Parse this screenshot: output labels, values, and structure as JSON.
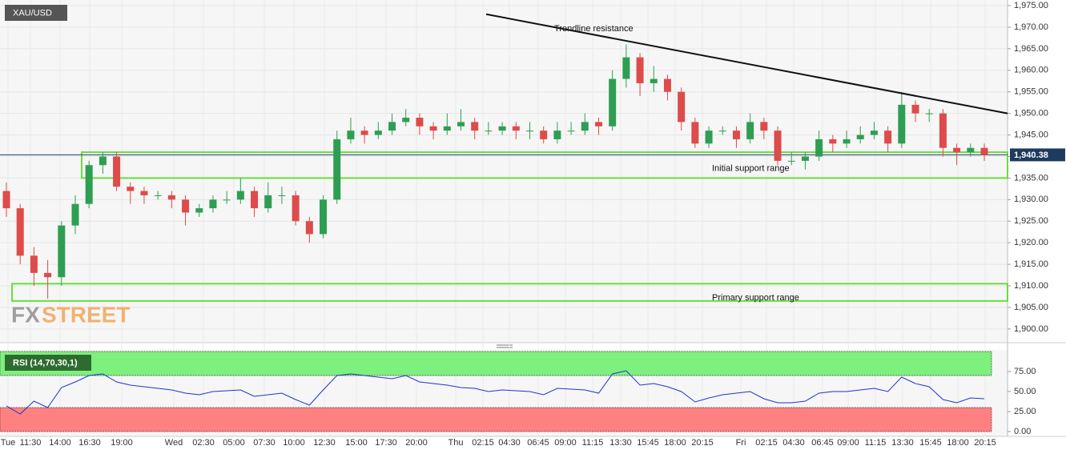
{
  "chart_data": {
    "type": "candlestick",
    "symbol": "XAU/USD",
    "watermark": [
      "FX",
      "STREET"
    ],
    "x_labels": [
      "Tue",
      "11:30",
      "14:00",
      "16:30",
      "19:00",
      "Wed",
      "02:30",
      "05:00",
      "07:30",
      "10:00",
      "12:30",
      "15:00",
      "17:30",
      "20:00",
      "Thu",
      "02:15",
      "04:30",
      "06:45",
      "09:00",
      "11:15",
      "13:30",
      "15:45",
      "18:00",
      "20:15",
      "Fri",
      "02:15",
      "04:30",
      "06:45",
      "09:00",
      "11:15",
      "13:30",
      "15:45",
      "18:00",
      "20:15"
    ],
    "open": [
      1932,
      1928,
      1917,
      1913,
      1912,
      1924,
      1929,
      1938,
      1940,
      1933,
      1932,
      1931,
      1931,
      1930,
      1927,
      1928,
      1930,
      1930,
      1932,
      1928,
      1931,
      1931,
      1925,
      1922,
      1930,
      1944,
      1946,
      1945,
      1946,
      1948,
      1949,
      1947,
      1946,
      1947,
      1948,
      1946,
      1946,
      1947,
      1946,
      1946,
      1944,
      1946,
      1946,
      1948,
      1947,
      1958,
      1963,
      1957,
      1958,
      1955,
      1948,
      1943,
      1946,
      1946,
      1944,
      1948,
      1946,
      1939,
      1939,
      1940,
      1944,
      1943,
      1944,
      1945,
      1946,
      1943,
      1952,
      1950,
      1950,
      1942,
      1941,
      1942
    ],
    "high": [
      1934,
      1929,
      1919,
      1916,
      1925,
      1931,
      1939,
      1941,
      1941,
      1934,
      1933,
      1932,
      1932,
      1931,
      1929,
      1931,
      1932,
      1935,
      1933,
      1934,
      1933,
      1932,
      1926,
      1931,
      1946,
      1949,
      1947,
      1948,
      1950,
      1951,
      1950,
      1948,
      1950,
      1951,
      1949,
      1948,
      1948,
      1948,
      1948,
      1947,
      1948,
      1948,
      1950,
      1949,
      1960,
      1966,
      1964,
      1961,
      1959,
      1956,
      1949,
      1947,
      1947,
      1947,
      1950,
      1949,
      1947,
      1941,
      1941,
      1946,
      1945,
      1946,
      1947,
      1948,
      1947,
      1955,
      1953,
      1951,
      1951,
      1943,
      1943,
      1943
    ],
    "low": [
      1926,
      1915,
      1910,
      1907,
      1910,
      1922,
      1928,
      1936,
      1932,
      1929,
      1929,
      1930,
      1928,
      1924,
      1926,
      1927,
      1929,
      1929,
      1926,
      1927,
      1929,
      1924,
      1920,
      1921,
      1929,
      1943,
      1943,
      1944,
      1945,
      1947,
      1945,
      1944,
      1945,
      1946,
      1944,
      1945,
      1945,
      1944,
      1944,
      1943,
      1943,
      1945,
      1945,
      1945,
      1946,
      1956,
      1954,
      1955,
      1953,
      1946,
      1942,
      1942,
      1945,
      1942,
      1943,
      1944,
      1938,
      1938,
      1937,
      1939,
      1941,
      1942,
      1943,
      1944,
      1941,
      1942,
      1948,
      1948,
      1940,
      1938,
      1940,
      1939
    ],
    "close": [
      1928,
      1917,
      1913,
      1912,
      1924,
      1929,
      1938,
      1940,
      1933,
      1932,
      1931,
      1931,
      1930,
      1927,
      1928,
      1930,
      1930,
      1932,
      1928,
      1931,
      1931,
      1925,
      1922,
      1930,
      1944,
      1946,
      1945,
      1946,
      1948,
      1949,
      1947,
      1946,
      1947,
      1948,
      1946,
      1946,
      1947,
      1946,
      1946,
      1944,
      1946,
      1946,
      1948,
      1947,
      1958,
      1963,
      1957,
      1958,
      1955,
      1948,
      1943,
      1946,
      1946,
      1944,
      1948,
      1946,
      1939,
      1939,
      1940,
      1944,
      1943,
      1944,
      1945,
      1946,
      1943,
      1952,
      1950,
      1950,
      1942,
      1941,
      1942,
      1940.38
    ],
    "up_color": "#2e9e52",
    "down_color": "#dd4b4b",
    "last_price": {
      "value": 1940.38,
      "label": "1,940.38"
    },
    "ylim": [
      1897,
      1976.3
    ],
    "yticks": [
      {
        "value": 1900,
        "label": "1,900.00"
      },
      {
        "value": 1905,
        "label": "1,905.00"
      },
      {
        "value": 1910,
        "label": "1,910.00"
      },
      {
        "value": 1915,
        "label": "1,915.00"
      },
      {
        "value": 1920,
        "label": "1,920.00"
      },
      {
        "value": 1925,
        "label": "1,925.00"
      },
      {
        "value": 1930,
        "label": "1,930.00"
      },
      {
        "value": 1935,
        "label": "1,935.00"
      },
      {
        "value": 1940,
        "label": "1,940.00"
      },
      {
        "value": 1945,
        "label": "1,945.00"
      },
      {
        "value": 1950,
        "label": "1,950.00"
      },
      {
        "value": 1955,
        "label": "1,955.00"
      },
      {
        "value": 1960,
        "label": "1,960.00"
      },
      {
        "value": 1965,
        "label": "1,965.00"
      },
      {
        "value": 1970,
        "label": "1,970.00"
      },
      {
        "value": 1975,
        "label": "1,975.00"
      }
    ],
    "grid": true,
    "trendline": {
      "label": "Trendline resistance",
      "values": [
        1973,
        1950
      ]
    },
    "support_ranges": [
      {
        "label": "Initial support range",
        "values": [
          1935,
          1941
        ]
      },
      {
        "label": "Primary support range",
        "values": [
          1906.5,
          1910.5
        ]
      }
    ],
    "rsi": {
      "label": "RSI (14,70,30,1)",
      "color": "#2233cc",
      "values": [
        32,
        22,
        38,
        30,
        55,
        62,
        70,
        72,
        62,
        58,
        56,
        54,
        52,
        48,
        46,
        50,
        51,
        52,
        44,
        46,
        48,
        40,
        33,
        52,
        70,
        72,
        70,
        68,
        66,
        70,
        62,
        60,
        58,
        55,
        54,
        50,
        52,
        51,
        50,
        46,
        54,
        53,
        52,
        48,
        72,
        76,
        58,
        60,
        56,
        50,
        37,
        42,
        46,
        48,
        50,
        41,
        36,
        36,
        38,
        48,
        50,
        50,
        52,
        54,
        50,
        68,
        60,
        56,
        40,
        36,
        42,
        41
      ],
      "ylim": [
        0,
        100
      ],
      "overbought": 70,
      "oversold": 30,
      "yticks": [
        {
          "value": 0,
          "label": "0.00"
        },
        {
          "value": 25,
          "label": "25.00"
        },
        {
          "value": 50,
          "label": "50.00"
        },
        {
          "value": 75,
          "label": "75.00"
        }
      ]
    }
  }
}
